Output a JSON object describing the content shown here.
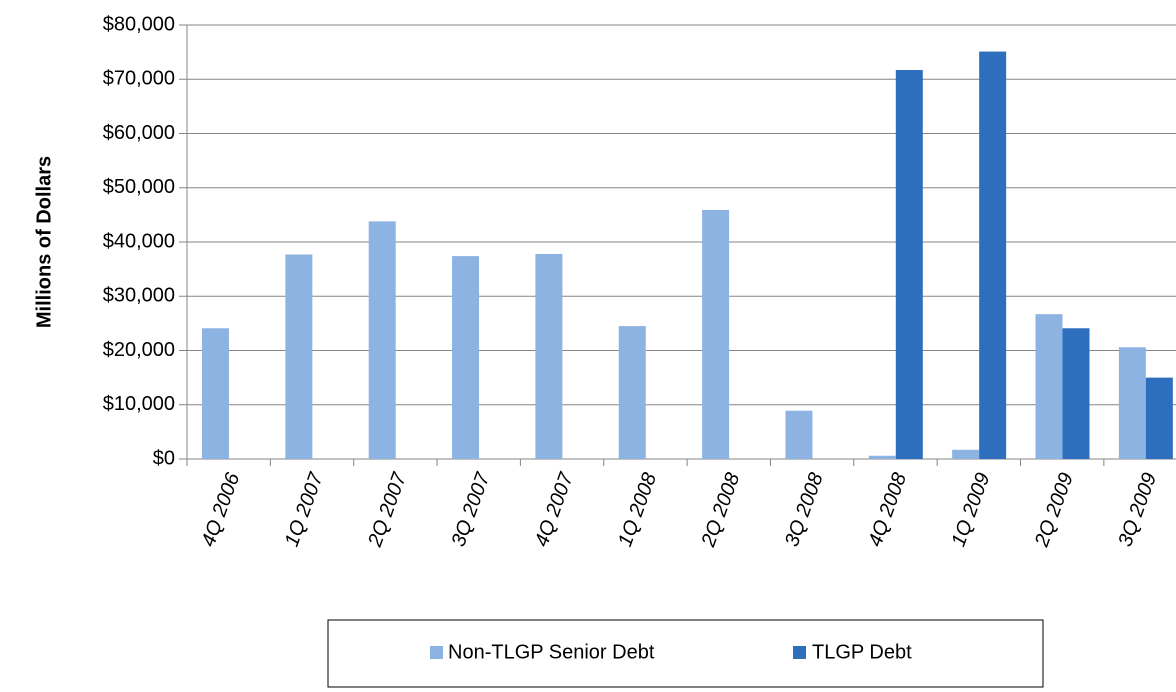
{
  "chart_data": {
    "type": "bar",
    "y_label": "Millions of Dollars",
    "categories": [
      "4Q 2006",
      "1Q 2007",
      "2Q 2007",
      "3Q 2007",
      "4Q 2007",
      "1Q 2008",
      "2Q 2008",
      "3Q 2008",
      "4Q 2008",
      "1Q 2009",
      "2Q 2009",
      "3Q 2009"
    ],
    "series": [
      {
        "name": "Non-TLGP Senior Debt",
        "color": "#8db3e2",
        "values": [
          24100,
          37700,
          43800,
          37400,
          37800,
          24500,
          45900,
          8900,
          600,
          1700,
          26700,
          20600
        ]
      },
      {
        "name": "TLGP Debt",
        "color": "#2e6fbd",
        "values": [
          0,
          0,
          0,
          0,
          0,
          0,
          0,
          0,
          71700,
          75100,
          24100,
          15000
        ]
      }
    ],
    "ylim": [
      0,
      80000
    ],
    "yticks": [
      {
        "value": 0,
        "label": "$0"
      },
      {
        "value": 10000,
        "label": "$10,000"
      },
      {
        "value": 20000,
        "label": "$20,000"
      },
      {
        "value": 30000,
        "label": "$30,000"
      },
      {
        "value": 40000,
        "label": "$40,000"
      },
      {
        "value": 50000,
        "label": "$50,000"
      },
      {
        "value": 60000,
        "label": "$60,000"
      },
      {
        "value": 70000,
        "label": "$70,000"
      },
      {
        "value": 80000,
        "label": "$80,000"
      }
    ],
    "grid": true,
    "legend": "bottom"
  }
}
